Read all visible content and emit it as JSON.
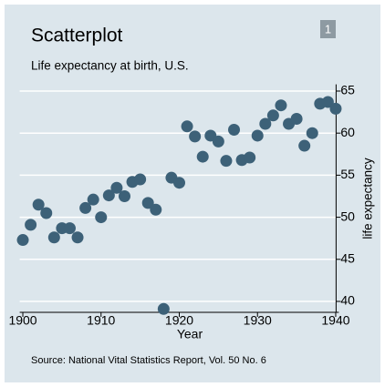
{
  "chart_data": {
    "type": "scatter",
    "title": "Scatterplot",
    "subtitle": "Life expectancy at birth, U.S.",
    "badge": "1",
    "note": "Source:  National Vital Statistics Report, Vol. 50 No. 6",
    "xlabel": "Year",
    "ylabel": "life expectancy",
    "color": "#3d6178",
    "grid": true,
    "y_axis_side": "right",
    "x": [
      1900,
      1901,
      1902,
      1903,
      1904,
      1905,
      1906,
      1907,
      1908,
      1909,
      1910,
      1911,
      1912,
      1913,
      1914,
      1915,
      1916,
      1917,
      1918,
      1919,
      1920,
      1921,
      1922,
      1923,
      1924,
      1925,
      1926,
      1927,
      1928,
      1929,
      1930,
      1931,
      1932,
      1933,
      1934,
      1935,
      1936,
      1937,
      1938,
      1939,
      1940
    ],
    "values": [
      47.3,
      49.1,
      51.5,
      50.5,
      47.6,
      48.7,
      48.7,
      47.6,
      51.1,
      52.1,
      50.0,
      52.6,
      53.5,
      52.5,
      54.2,
      54.5,
      51.7,
      50.9,
      39.1,
      54.7,
      54.1,
      60.8,
      59.6,
      57.2,
      59.7,
      59.0,
      56.7,
      60.4,
      56.8,
      57.1,
      59.7,
      61.1,
      62.1,
      63.3,
      61.1,
      61.7,
      58.5,
      60.0,
      63.5,
      63.7,
      62.9
    ],
    "xlim": [
      1899.6,
      1940.4
    ],
    "ylim": [
      38.7,
      65.8
    ],
    "xticks": [
      1900,
      1910,
      1920,
      1930,
      1940
    ],
    "yticks": [
      40,
      45,
      50,
      55,
      60,
      65
    ]
  }
}
